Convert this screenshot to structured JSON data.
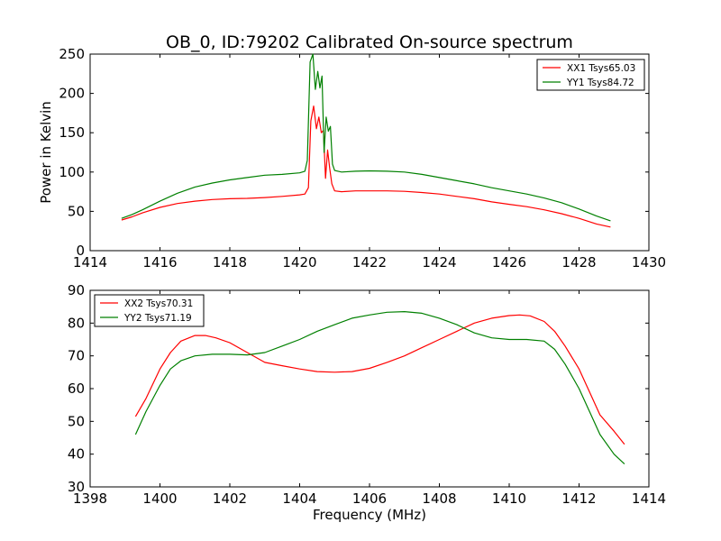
{
  "figure_title": "OB_0, ID:79202 Calibrated On-source spectrum",
  "chart_data": [
    {
      "type": "line",
      "title": "OB_0, ID:79202 Calibrated On-source spectrum",
      "xlabel": "",
      "ylabel": "Power in Kelvin",
      "xlim": [
        1414,
        1430
      ],
      "ylim": [
        0,
        250
      ],
      "xticks": [
        1414,
        1416,
        1418,
        1420,
        1422,
        1424,
        1426,
        1428,
        1430
      ],
      "yticks": [
        0,
        50,
        100,
        150,
        200,
        250
      ],
      "grid": false,
      "legend_position": "upper right",
      "series": [
        {
          "name": "XX1 Tsys65.03",
          "color": "#ff0000",
          "x": [
            1414.9,
            1415.2,
            1415.5,
            1416.0,
            1416.5,
            1417.0,
            1417.5,
            1418.0,
            1418.5,
            1419.0,
            1419.5,
            1420.0,
            1420.15,
            1420.25,
            1420.32,
            1420.4,
            1420.48,
            1420.55,
            1420.62,
            1420.68,
            1420.74,
            1420.8,
            1420.86,
            1420.92,
            1421.0,
            1421.2,
            1421.6,
            1422.0,
            1422.5,
            1423.0,
            1423.5,
            1424.0,
            1424.5,
            1425.0,
            1425.5,
            1426.0,
            1426.5,
            1427.0,
            1427.5,
            1428.0,
            1428.5,
            1428.9
          ],
          "y": [
            39,
            43,
            48,
            55,
            60,
            63,
            65,
            66,
            66.5,
            67.5,
            69,
            71,
            72,
            80,
            165,
            184,
            155,
            170,
            150,
            153,
            92,
            128,
            105,
            85,
            76,
            75,
            76,
            76,
            76,
            75.5,
            74,
            72,
            69,
            66,
            62,
            59,
            56,
            52,
            47,
            41,
            34,
            30
          ]
        },
        {
          "name": "YY1 Tsys84.72",
          "color": "#008000",
          "x": [
            1414.9,
            1415.2,
            1415.5,
            1416.0,
            1416.5,
            1417.0,
            1417.5,
            1418.0,
            1418.5,
            1419.0,
            1419.5,
            1420.0,
            1420.15,
            1420.22,
            1420.3,
            1420.38,
            1420.45,
            1420.52,
            1420.58,
            1420.64,
            1420.7,
            1420.76,
            1420.82,
            1420.88,
            1420.94,
            1421.0,
            1421.2,
            1421.6,
            1422.0,
            1422.5,
            1423.0,
            1423.5,
            1424.0,
            1424.5,
            1425.0,
            1425.5,
            1426.0,
            1426.5,
            1427.0,
            1427.5,
            1428.0,
            1428.5,
            1428.9
          ],
          "y": [
            41,
            46,
            52,
            63,
            73,
            81,
            86,
            90,
            93,
            96,
            97,
            99,
            101,
            115,
            240,
            250,
            205,
            228,
            207,
            222,
            125,
            170,
            152,
            158,
            110,
            102,
            100,
            101,
            101.5,
            101,
            100,
            97,
            93,
            89,
            85,
            80,
            76,
            72,
            67,
            61,
            53,
            44,
            38
          ]
        }
      ]
    },
    {
      "type": "line",
      "title": "",
      "xlabel": "Frequency (MHz)",
      "ylabel": "",
      "xlim": [
        1398,
        1414
      ],
      "ylim": [
        30,
        90
      ],
      "xticks": [
        1398,
        1400,
        1402,
        1404,
        1406,
        1408,
        1410,
        1412,
        1414
      ],
      "yticks": [
        30,
        40,
        50,
        60,
        70,
        80,
        90
      ],
      "grid": false,
      "legend_position": "upper left",
      "series": [
        {
          "name": "XX2 Tsys70.31",
          "color": "#ff0000",
          "x": [
            1399.3,
            1399.6,
            1400.0,
            1400.3,
            1400.6,
            1401.0,
            1401.3,
            1401.6,
            1402.0,
            1402.5,
            1403.0,
            1403.5,
            1404.0,
            1404.5,
            1405.0,
            1405.5,
            1406.0,
            1406.5,
            1407.0,
            1407.5,
            1408.0,
            1408.5,
            1409.0,
            1409.5,
            1410.0,
            1410.3,
            1410.6,
            1411.0,
            1411.3,
            1411.6,
            1412.0,
            1412.3,
            1412.6,
            1413.0,
            1413.3
          ],
          "y": [
            51.5,
            57,
            66,
            71,
            74.5,
            76.2,
            76.2,
            75.5,
            74,
            71,
            68,
            67,
            66,
            65.2,
            65,
            65.2,
            66.2,
            68,
            70,
            72.5,
            75,
            77.5,
            80,
            81.5,
            82.3,
            82.5,
            82.2,
            80.5,
            77.5,
            73,
            66,
            59,
            52,
            47,
            43
          ]
        },
        {
          "name": "YY2 Tsys71.19",
          "color": "#008000",
          "x": [
            1399.3,
            1399.6,
            1400.0,
            1400.3,
            1400.6,
            1401.0,
            1401.5,
            1402.0,
            1402.5,
            1403.0,
            1403.5,
            1404.0,
            1404.5,
            1405.0,
            1405.5,
            1406.0,
            1406.5,
            1407.0,
            1407.5,
            1408.0,
            1408.5,
            1409.0,
            1409.5,
            1410.0,
            1410.5,
            1411.0,
            1411.3,
            1411.6,
            1412.0,
            1412.3,
            1412.6,
            1413.0,
            1413.3
          ],
          "y": [
            46,
            53,
            61,
            66,
            68.5,
            70,
            70.5,
            70.5,
            70.3,
            71,
            73,
            75,
            77.5,
            79.5,
            81.5,
            82.5,
            83.3,
            83.5,
            83,
            81.5,
            79.5,
            77,
            75.5,
            75,
            75,
            74.5,
            72,
            67.5,
            60,
            53,
            46,
            40,
            37
          ]
        }
      ]
    }
  ]
}
